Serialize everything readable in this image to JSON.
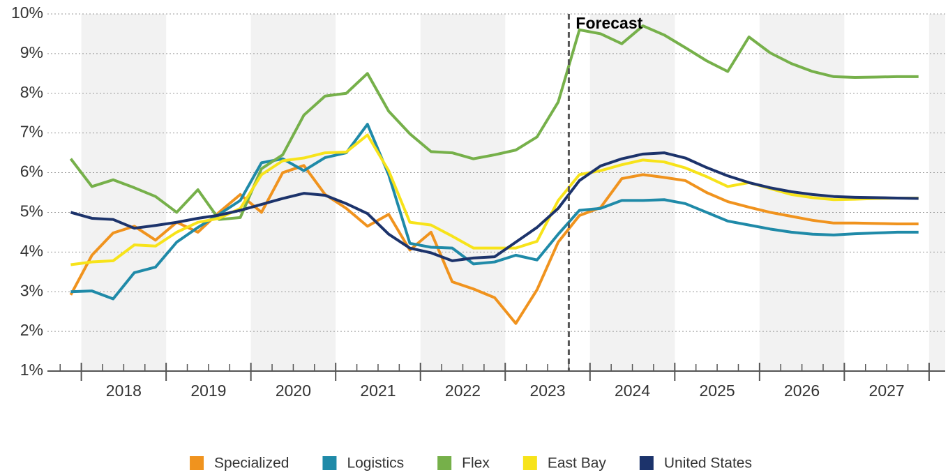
{
  "chart_data": {
    "type": "line",
    "x": [
      2017.875,
      2018.125,
      2018.375,
      2018.625,
      2018.875,
      2019.125,
      2019.375,
      2019.625,
      2019.875,
      2020.125,
      2020.375,
      2020.625,
      2020.875,
      2021.125,
      2021.375,
      2021.625,
      2021.875,
      2022.125,
      2022.375,
      2022.625,
      2022.875,
      2023.125,
      2023.375,
      2023.625,
      2023.875,
      2024.125,
      2024.375,
      2024.625,
      2024.875,
      2025.125,
      2025.375,
      2025.625,
      2025.875,
      2026.125,
      2026.375,
      2026.625,
      2026.875,
      2027.125,
      2027.375,
      2027.625,
      2027.875
    ],
    "series": [
      {
        "name": "Specialized",
        "color": "#f0931e",
        "values": [
          2.92,
          3.92,
          4.48,
          4.65,
          4.3,
          4.75,
          4.5,
          5.0,
          5.45,
          5.0,
          6.0,
          6.18,
          5.45,
          5.1,
          4.65,
          4.95,
          4.05,
          4.5,
          3.25,
          3.07,
          2.85,
          2.2,
          3.05,
          4.25,
          4.92,
          5.12,
          5.85,
          5.95,
          5.88,
          5.8,
          5.5,
          5.27,
          5.13,
          5.0,
          4.9,
          4.8,
          4.73,
          4.73,
          4.72,
          4.71,
          4.71
        ]
      },
      {
        "name": "Logistics",
        "color": "#1f8aa8",
        "values": [
          3.0,
          3.02,
          2.82,
          3.48,
          3.62,
          4.25,
          4.62,
          4.95,
          5.3,
          6.25,
          6.35,
          6.05,
          6.38,
          6.5,
          7.22,
          5.95,
          4.22,
          4.12,
          4.1,
          3.7,
          3.75,
          3.92,
          3.8,
          4.45,
          5.05,
          5.1,
          5.3,
          5.3,
          5.32,
          5.22,
          5.0,
          4.78,
          4.68,
          4.58,
          4.5,
          4.45,
          4.43,
          4.46,
          4.48,
          4.5,
          4.5
        ]
      },
      {
        "name": "Flex",
        "color": "#76b04a",
        "values": [
          6.35,
          5.65,
          5.82,
          5.62,
          5.4,
          5.0,
          5.57,
          4.82,
          4.87,
          6.1,
          6.45,
          7.45,
          7.93,
          8.0,
          8.5,
          7.55,
          6.98,
          6.53,
          6.5,
          6.35,
          6.45,
          6.57,
          6.9,
          7.78,
          9.6,
          9.5,
          9.25,
          9.7,
          9.47,
          9.15,
          8.82,
          8.55,
          9.42,
          9.02,
          8.75,
          8.55,
          8.42,
          8.4,
          8.41,
          8.42,
          8.42
        ]
      },
      {
        "name": "East Bay",
        "color": "#f7e31a",
        "values": [
          3.68,
          3.75,
          3.78,
          4.18,
          4.15,
          4.5,
          4.75,
          4.85,
          5.1,
          5.95,
          6.3,
          6.37,
          6.5,
          6.52,
          6.95,
          6.05,
          4.75,
          4.68,
          4.4,
          4.1,
          4.1,
          4.1,
          4.27,
          5.3,
          5.95,
          6.05,
          6.2,
          6.32,
          6.27,
          6.12,
          5.9,
          5.65,
          5.75,
          5.6,
          5.45,
          5.37,
          5.32,
          5.33,
          5.35,
          5.36,
          5.36
        ]
      },
      {
        "name": "United States",
        "color": "#1c336b",
        "values": [
          5.0,
          4.85,
          4.82,
          4.6,
          4.67,
          4.75,
          4.85,
          4.93,
          5.05,
          5.2,
          5.35,
          5.48,
          5.43,
          5.22,
          4.97,
          4.45,
          4.1,
          3.98,
          3.78,
          3.85,
          3.88,
          4.25,
          4.62,
          5.1,
          5.8,
          6.17,
          6.35,
          6.47,
          6.5,
          6.37,
          6.13,
          5.92,
          5.75,
          5.62,
          5.52,
          5.45,
          5.4,
          5.38,
          5.37,
          5.36,
          5.35
        ]
      }
    ],
    "xlim": [
      2017.6,
      2028.19
    ],
    "xticks": [
      {
        "value": 2018.5,
        "label": "2018"
      },
      {
        "value": 2019.5,
        "label": "2019"
      },
      {
        "value": 2020.5,
        "label": "2020"
      },
      {
        "value": 2021.5,
        "label": "2021"
      },
      {
        "value": 2022.5,
        "label": "2022"
      },
      {
        "value": 2023.5,
        "label": "2023"
      },
      {
        "value": 2024.5,
        "label": "2024"
      },
      {
        "value": 2025.5,
        "label": "2025"
      },
      {
        "value": 2026.5,
        "label": "2026"
      },
      {
        "value": 2027.5,
        "label": "2027"
      }
    ],
    "ylim": [
      1,
      10
    ],
    "yticks": [
      {
        "value": 1,
        "label": "1%"
      },
      {
        "value": 2,
        "label": "2%"
      },
      {
        "value": 3,
        "label": "3%"
      },
      {
        "value": 4,
        "label": "4%"
      },
      {
        "value": 5,
        "label": "5%"
      },
      {
        "value": 6,
        "label": "6%"
      },
      {
        "value": 7,
        "label": "7%"
      },
      {
        "value": 8,
        "label": "8%"
      },
      {
        "value": 9,
        "label": "9%"
      },
      {
        "value": 10,
        "label": "10%"
      }
    ],
    "grid": true,
    "forecast_x": 2023.75,
    "annotation": "Forecast",
    "legend": "bottom"
  }
}
